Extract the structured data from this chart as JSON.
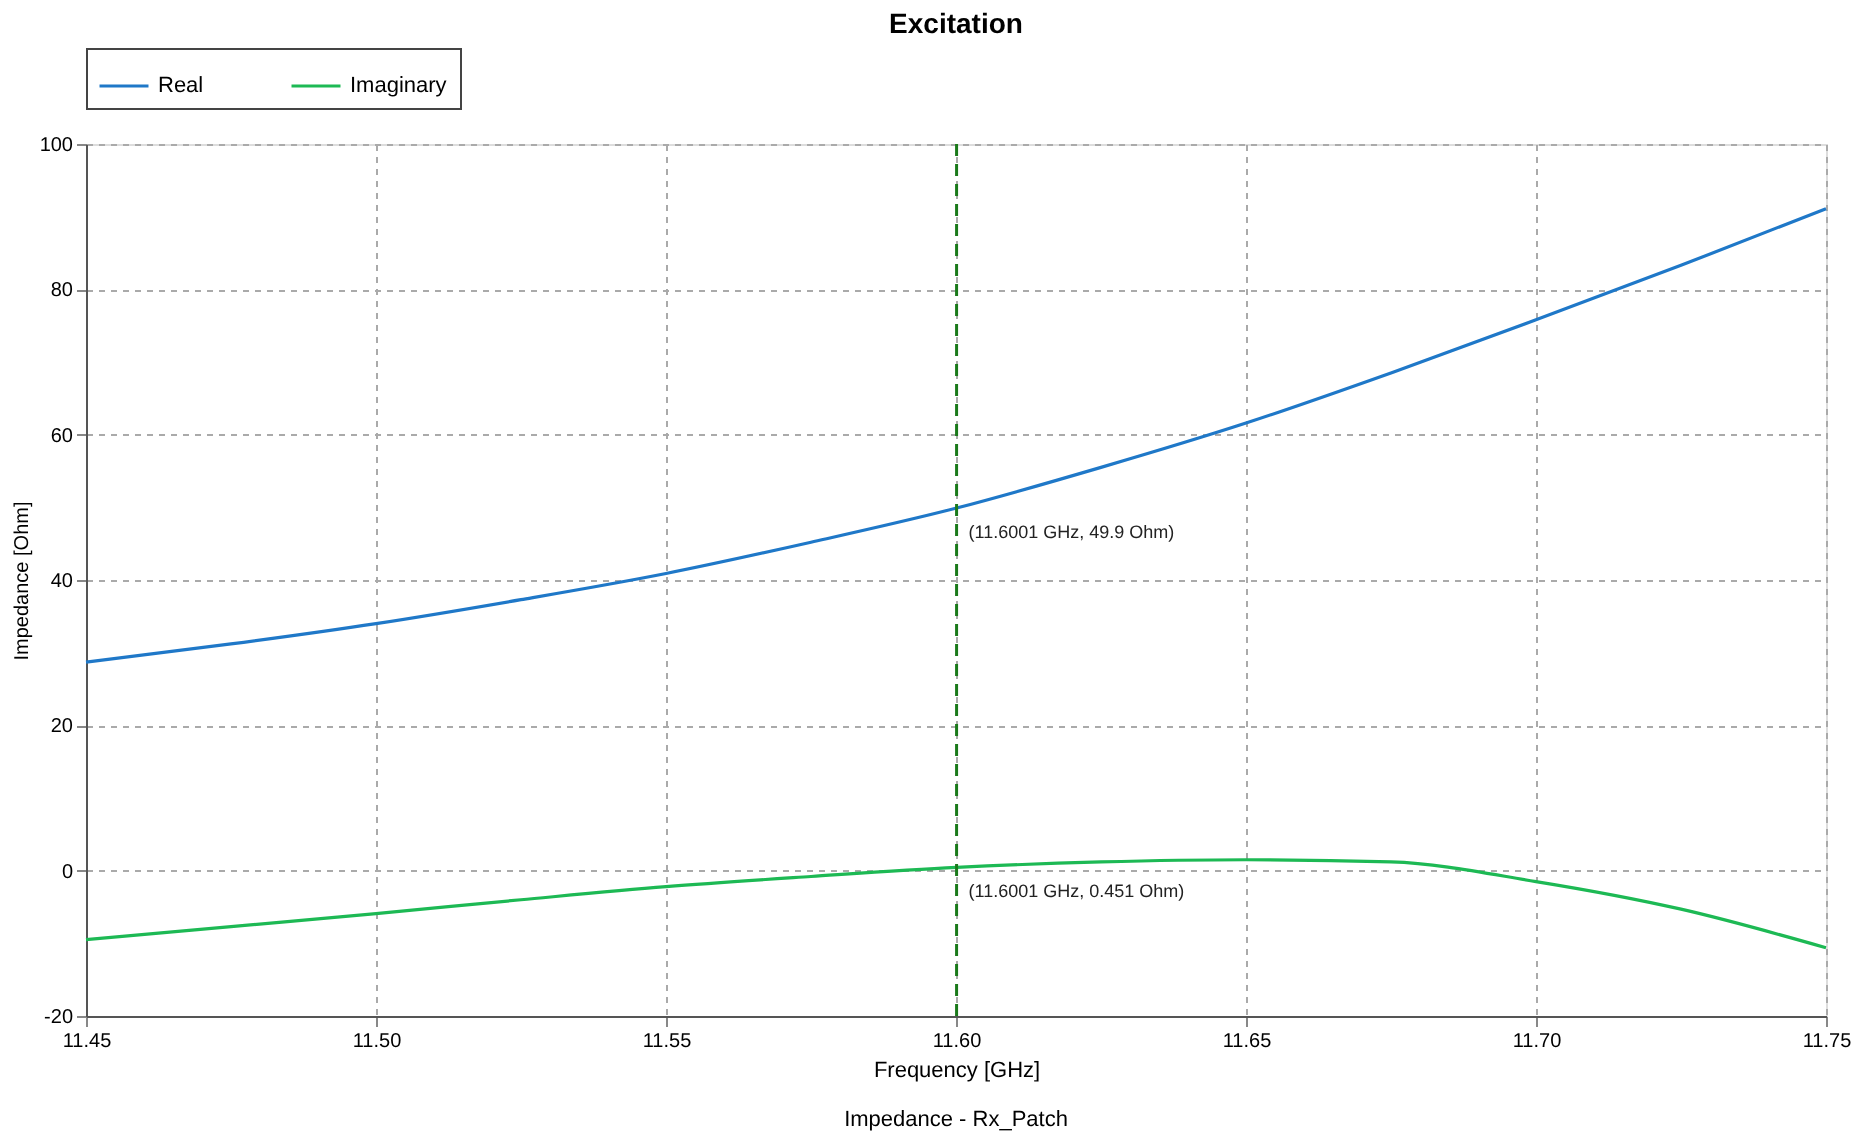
{
  "chart_data": {
    "type": "line",
    "title": "Excitation",
    "xlabel": "Frequency [GHz]",
    "ylabel": "Impedance [Ohm]",
    "x": [
      11.45,
      11.475,
      11.5,
      11.525,
      11.55,
      11.575,
      11.6001,
      11.625,
      11.65,
      11.675,
      11.7,
      11.725,
      11.75
    ],
    "series": [
      {
        "name": "Real",
        "color": "#1f78c8",
        "values": [
          28.7,
          31.2,
          34.0,
          37.3,
          40.9,
          45.2,
          49.9,
          55.5,
          61.6,
          68.5,
          75.8,
          83.3,
          91.1
        ]
      },
      {
        "name": "Imaginary",
        "color": "#1db954",
        "values": [
          -9.5,
          -7.7,
          -5.9,
          -4.0,
          -2.2,
          -0.8,
          0.451,
          1.2,
          1.5,
          1.2,
          -1.5,
          -5.3,
          -10.6
        ]
      }
    ],
    "xlim": [
      11.45,
      11.75
    ],
    "xticks": [
      {
        "value": 11.45,
        "label": "11.45"
      },
      {
        "value": 11.5,
        "label": "11.50"
      },
      {
        "value": 11.55,
        "label": "11.55"
      },
      {
        "value": 11.6,
        "label": "11.60"
      },
      {
        "value": 11.65,
        "label": "11.65"
      },
      {
        "value": 11.7,
        "label": "11.70"
      },
      {
        "value": 11.75,
        "label": "11.75"
      }
    ],
    "ylim": [
      -20,
      100
    ],
    "yticks": [
      -20,
      0,
      20,
      40,
      60,
      80,
      100
    ],
    "ref_lines": [
      {
        "axis": "x",
        "value": 11.6001,
        "color": "#1a7a1a",
        "line_style": "dashed"
      }
    ],
    "annotations": [
      {
        "text": "(11.6001 GHz, 49.9 Ohm)",
        "x": 11.6001,
        "y": 49.9
      },
      {
        "text": "(11.6001 GHz, 0.451 Ohm)",
        "x": 11.6001,
        "y": 0.451
      },
      "Impedance - Rx_Patch"
    ],
    "grid": true,
    "legend": "top",
    "marker": "none",
    "line_style": "solid"
  }
}
